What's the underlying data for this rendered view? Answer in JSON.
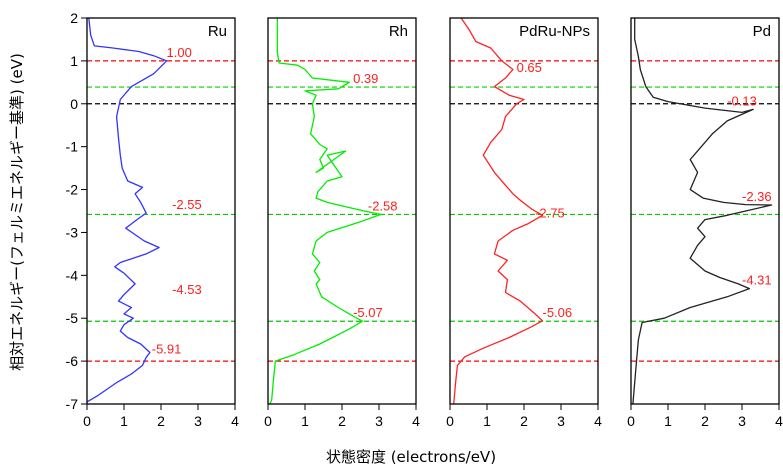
{
  "chart_data": {
    "type": "line",
    "xlabel": "状態密度 (electrons/eV)",
    "ylabel": "相対エネルギー(フェルミエネルギー基準) (eV)",
    "xlim": [
      0,
      4
    ],
    "ylim": [
      -7,
      2
    ],
    "x_ticks": [
      "0",
      "1",
      "2",
      "3",
      "4"
    ],
    "y_ticks": [
      "2",
      "1",
      "0",
      "-1",
      "-2",
      "-3",
      "-4",
      "-5",
      "-6",
      "-7"
    ],
    "y_tick_values": [
      2,
      1,
      0,
      -1,
      -2,
      -3,
      -4,
      -5,
      -6,
      -7
    ],
    "grid": false,
    "ref_lines": [
      {
        "y": 1.0,
        "color": "#ff0000"
      },
      {
        "y": 0.39,
        "color": "#00cc00"
      },
      {
        "y": 0.0,
        "color": "#000000"
      },
      {
        "y": -2.58,
        "color": "#00cc00"
      },
      {
        "y": -5.07,
        "color": "#00cc00"
      },
      {
        "y": -6.0,
        "color": "#ff0000"
      }
    ],
    "panels": [
      {
        "name": "Ru",
        "color": "#3333ff",
        "points": [
          [
            0.05,
            2.0
          ],
          [
            0.1,
            1.6
          ],
          [
            0.2,
            1.35
          ],
          [
            0.7,
            1.3
          ],
          [
            1.4,
            1.22
          ],
          [
            1.8,
            1.12
          ],
          [
            2.15,
            1.0
          ],
          [
            1.8,
            0.7
          ],
          [
            1.2,
            0.4
          ],
          [
            0.9,
            0.1
          ],
          [
            0.8,
            -0.3
          ],
          [
            0.85,
            -0.8
          ],
          [
            0.9,
            -1.2
          ],
          [
            0.95,
            -1.5
          ],
          [
            1.1,
            -1.8
          ],
          [
            1.5,
            -1.95
          ],
          [
            1.3,
            -2.1
          ],
          [
            1.45,
            -2.3
          ],
          [
            1.6,
            -2.55
          ],
          [
            1.35,
            -2.7
          ],
          [
            1.05,
            -2.9
          ],
          [
            1.3,
            -3.05
          ],
          [
            1.55,
            -3.2
          ],
          [
            1.95,
            -3.35
          ],
          [
            1.6,
            -3.5
          ],
          [
            0.9,
            -3.7
          ],
          [
            0.75,
            -3.8
          ],
          [
            1.0,
            -3.95
          ],
          [
            1.3,
            -4.2
          ],
          [
            1.0,
            -4.45
          ],
          [
            0.85,
            -4.6
          ],
          [
            1.2,
            -4.75
          ],
          [
            1.0,
            -4.9
          ],
          [
            1.25,
            -5.0
          ],
          [
            1.0,
            -5.15
          ],
          [
            0.9,
            -5.3
          ],
          [
            1.1,
            -5.45
          ],
          [
            1.45,
            -5.6
          ],
          [
            1.7,
            -5.8
          ],
          [
            1.6,
            -5.91
          ],
          [
            1.5,
            -6.1
          ],
          [
            1.2,
            -6.3
          ],
          [
            0.8,
            -6.5
          ],
          [
            0.3,
            -6.8
          ],
          [
            0.0,
            -6.95
          ]
        ],
        "annotations": [
          {
            "text": "1.00",
            "y": 1.0,
            "x": 2.15
          },
          {
            "text": "-2.55",
            "y": -2.55,
            "x": 2.3
          },
          {
            "text": "-4.53",
            "y": -4.53,
            "x": 2.3
          },
          {
            "text": "-5.91",
            "y": -5.91,
            "x": 1.75
          }
        ]
      },
      {
        "name": "Rh",
        "color": "#00ee00",
        "points": [
          [
            0.25,
            2.0
          ],
          [
            0.25,
            1.2
          ],
          [
            0.3,
            0.95
          ],
          [
            0.8,
            0.9
          ],
          [
            1.0,
            0.8
          ],
          [
            1.2,
            0.6
          ],
          [
            2.2,
            0.5
          ],
          [
            1.9,
            0.35
          ],
          [
            1.0,
            0.3
          ],
          [
            1.3,
            0.2
          ],
          [
            1.2,
            0.0
          ],
          [
            1.25,
            -0.3
          ],
          [
            1.15,
            -0.7
          ],
          [
            1.3,
            -0.85
          ],
          [
            1.4,
            -0.95
          ],
          [
            1.6,
            -1.05
          ],
          [
            1.4,
            -1.3
          ],
          [
            1.5,
            -1.5
          ],
          [
            1.3,
            -1.6
          ],
          [
            2.1,
            -1.1
          ],
          [
            1.6,
            -1.2
          ],
          [
            2.0,
            -1.7
          ],
          [
            1.6,
            -1.8
          ],
          [
            1.35,
            -2.05
          ],
          [
            1.3,
            -2.2
          ],
          [
            1.6,
            -2.3
          ],
          [
            2.1,
            -2.4
          ],
          [
            2.6,
            -2.5
          ],
          [
            3.05,
            -2.58
          ],
          [
            2.5,
            -2.75
          ],
          [
            1.6,
            -3.0
          ],
          [
            1.3,
            -3.2
          ],
          [
            1.2,
            -3.5
          ],
          [
            1.4,
            -3.7
          ],
          [
            1.25,
            -3.9
          ],
          [
            1.4,
            -4.1
          ],
          [
            1.3,
            -4.2
          ],
          [
            1.45,
            -4.5
          ],
          [
            1.9,
            -4.75
          ],
          [
            2.3,
            -4.95
          ],
          [
            2.55,
            -5.07
          ],
          [
            2.2,
            -5.25
          ],
          [
            1.4,
            -5.6
          ],
          [
            0.7,
            -5.85
          ],
          [
            0.2,
            -6.0
          ],
          [
            0.15,
            -6.4
          ],
          [
            0.1,
            -6.9
          ],
          [
            0.05,
            -7.0
          ]
        ],
        "annotations": [
          {
            "text": "0.39",
            "y": 0.39,
            "x": 2.3
          },
          {
            "text": "-2.58",
            "y": -2.58,
            "x": 2.7
          },
          {
            "text": "-5.07",
            "y": -5.07,
            "x": 2.3
          }
        ]
      },
      {
        "name": "PdRu-NPs",
        "color": "#ff2222",
        "points": [
          [
            0.3,
            2.0
          ],
          [
            0.5,
            1.75
          ],
          [
            0.7,
            1.45
          ],
          [
            1.1,
            1.3
          ],
          [
            1.4,
            1.0
          ],
          [
            1.7,
            0.8
          ],
          [
            1.5,
            0.6
          ],
          [
            1.2,
            0.4
          ],
          [
            1.6,
            0.2
          ],
          [
            2.0,
            0.1
          ],
          [
            1.8,
            0.0
          ],
          [
            1.5,
            -0.3
          ],
          [
            1.4,
            -0.6
          ],
          [
            1.1,
            -0.9
          ],
          [
            0.9,
            -1.2
          ],
          [
            1.2,
            -1.6
          ],
          [
            1.5,
            -1.9
          ],
          [
            1.7,
            -2.1
          ],
          [
            1.9,
            -2.25
          ],
          [
            2.2,
            -2.45
          ],
          [
            2.5,
            -2.6
          ],
          [
            2.1,
            -2.8
          ],
          [
            1.7,
            -2.95
          ],
          [
            1.3,
            -3.2
          ],
          [
            1.2,
            -3.5
          ],
          [
            1.55,
            -3.65
          ],
          [
            1.3,
            -3.9
          ],
          [
            1.55,
            -4.1
          ],
          [
            1.5,
            -4.4
          ],
          [
            1.9,
            -4.6
          ],
          [
            2.3,
            -4.9
          ],
          [
            2.5,
            -5.06
          ],
          [
            2.2,
            -5.2
          ],
          [
            1.6,
            -5.45
          ],
          [
            0.9,
            -5.7
          ],
          [
            0.4,
            -5.9
          ],
          [
            0.2,
            -6.1
          ],
          [
            0.15,
            -6.5
          ],
          [
            0.1,
            -7.0
          ]
        ],
        "annotations": [
          {
            "text": "0.65",
            "y": 0.65,
            "x": 1.8
          },
          {
            "text": "-2.75",
            "y": -2.75,
            "x": 2.3
          },
          {
            "text": "-5.06",
            "y": -5.06,
            "x": 2.5
          }
        ]
      },
      {
        "name": "Pd",
        "color": "#222222",
        "points": [
          [
            0.1,
            2.0
          ],
          [
            0.1,
            1.5
          ],
          [
            0.2,
            1.1
          ],
          [
            0.25,
            0.8
          ],
          [
            0.4,
            0.4
          ],
          [
            0.6,
            0.15
          ],
          [
            1.0,
            0.05
          ],
          [
            2.0,
            -0.1
          ],
          [
            3.0,
            -0.2
          ],
          [
            3.3,
            -0.13
          ],
          [
            2.6,
            -0.4
          ],
          [
            2.2,
            -0.7
          ],
          [
            1.9,
            -1.0
          ],
          [
            1.6,
            -1.3
          ],
          [
            1.8,
            -1.6
          ],
          [
            1.6,
            -2.0
          ],
          [
            1.95,
            -2.2
          ],
          [
            2.5,
            -2.3
          ],
          [
            3.1,
            -2.35
          ],
          [
            3.8,
            -2.36
          ],
          [
            3.1,
            -2.5
          ],
          [
            2.6,
            -2.6
          ],
          [
            2.0,
            -2.7
          ],
          [
            1.8,
            -2.9
          ],
          [
            2.0,
            -3.1
          ],
          [
            1.8,
            -3.3
          ],
          [
            1.6,
            -3.6
          ],
          [
            2.0,
            -3.9
          ],
          [
            2.4,
            -4.05
          ],
          [
            2.9,
            -4.2
          ],
          [
            3.2,
            -4.31
          ],
          [
            2.6,
            -4.5
          ],
          [
            1.6,
            -4.75
          ],
          [
            0.9,
            -5.0
          ],
          [
            0.3,
            -5.1
          ],
          [
            0.2,
            -5.5
          ],
          [
            0.15,
            -6.0
          ],
          [
            0.1,
            -6.5
          ],
          [
            0.05,
            -7.0
          ]
        ],
        "annotations": [
          {
            "text": "-0.13",
            "y": -0.13,
            "x": 2.6
          },
          {
            "text": "-2.36",
            "y": -2.36,
            "x": 3.0
          },
          {
            "text": "-4.31",
            "y": -4.31,
            "x": 3.0
          }
        ]
      }
    ]
  }
}
